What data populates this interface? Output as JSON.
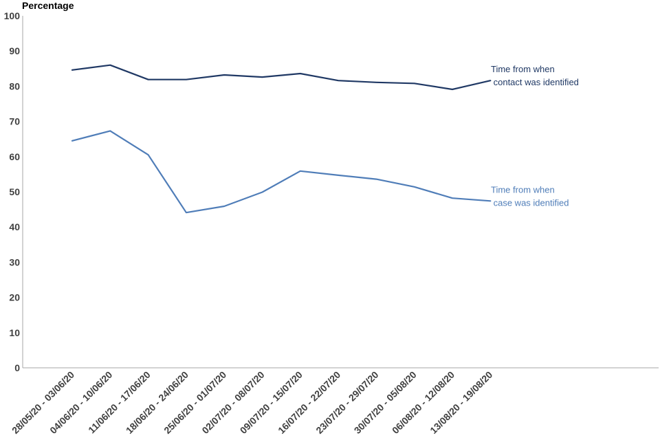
{
  "chart_data": {
    "type": "line",
    "title": "",
    "xlabel": "",
    "ylabel": "Percentage",
    "ylim": [
      0,
      100
    ],
    "yticks": [
      "0",
      "10",
      "20",
      "30",
      "40",
      "50",
      "60",
      "70",
      "80",
      "90",
      "100"
    ],
    "grid": false,
    "categories": [
      "28/05/20 - 03/06/20",
      "04/06/20 - 10/06/20",
      "11/06/20 - 17/06/20",
      "18/06/20 - 24/06/20",
      "25/06/20 - 01/07/20",
      "02/07/20 - 08/07/20",
      "09/07/20 - 15/07/20",
      "16/07/20 - 22/07/20",
      "23/07/20 - 29/07/20",
      "30/07/20 - 05/08/20",
      "06/08/20 - 12/08/20",
      "13/08/20 - 19/08/20"
    ],
    "series": [
      {
        "name": "Time from when contact was identified",
        "label_lines": [
          "Time from when",
          " contact was identified"
        ],
        "color": "#1f3864",
        "values": [
          84.6,
          86.0,
          81.9,
          81.9,
          83.2,
          82.6,
          83.6,
          81.6,
          81.1,
          80.8,
          79.1,
          81.6
        ]
      },
      {
        "name": "Time from when case was identified",
        "label_lines": [
          "Time from when",
          " case was identified"
        ],
        "color": "#4f7db8",
        "values": [
          64.5,
          67.3,
          60.5,
          44.1,
          45.9,
          49.9,
          55.9,
          54.7,
          53.6,
          51.4,
          48.2,
          47.4
        ]
      }
    ]
  }
}
